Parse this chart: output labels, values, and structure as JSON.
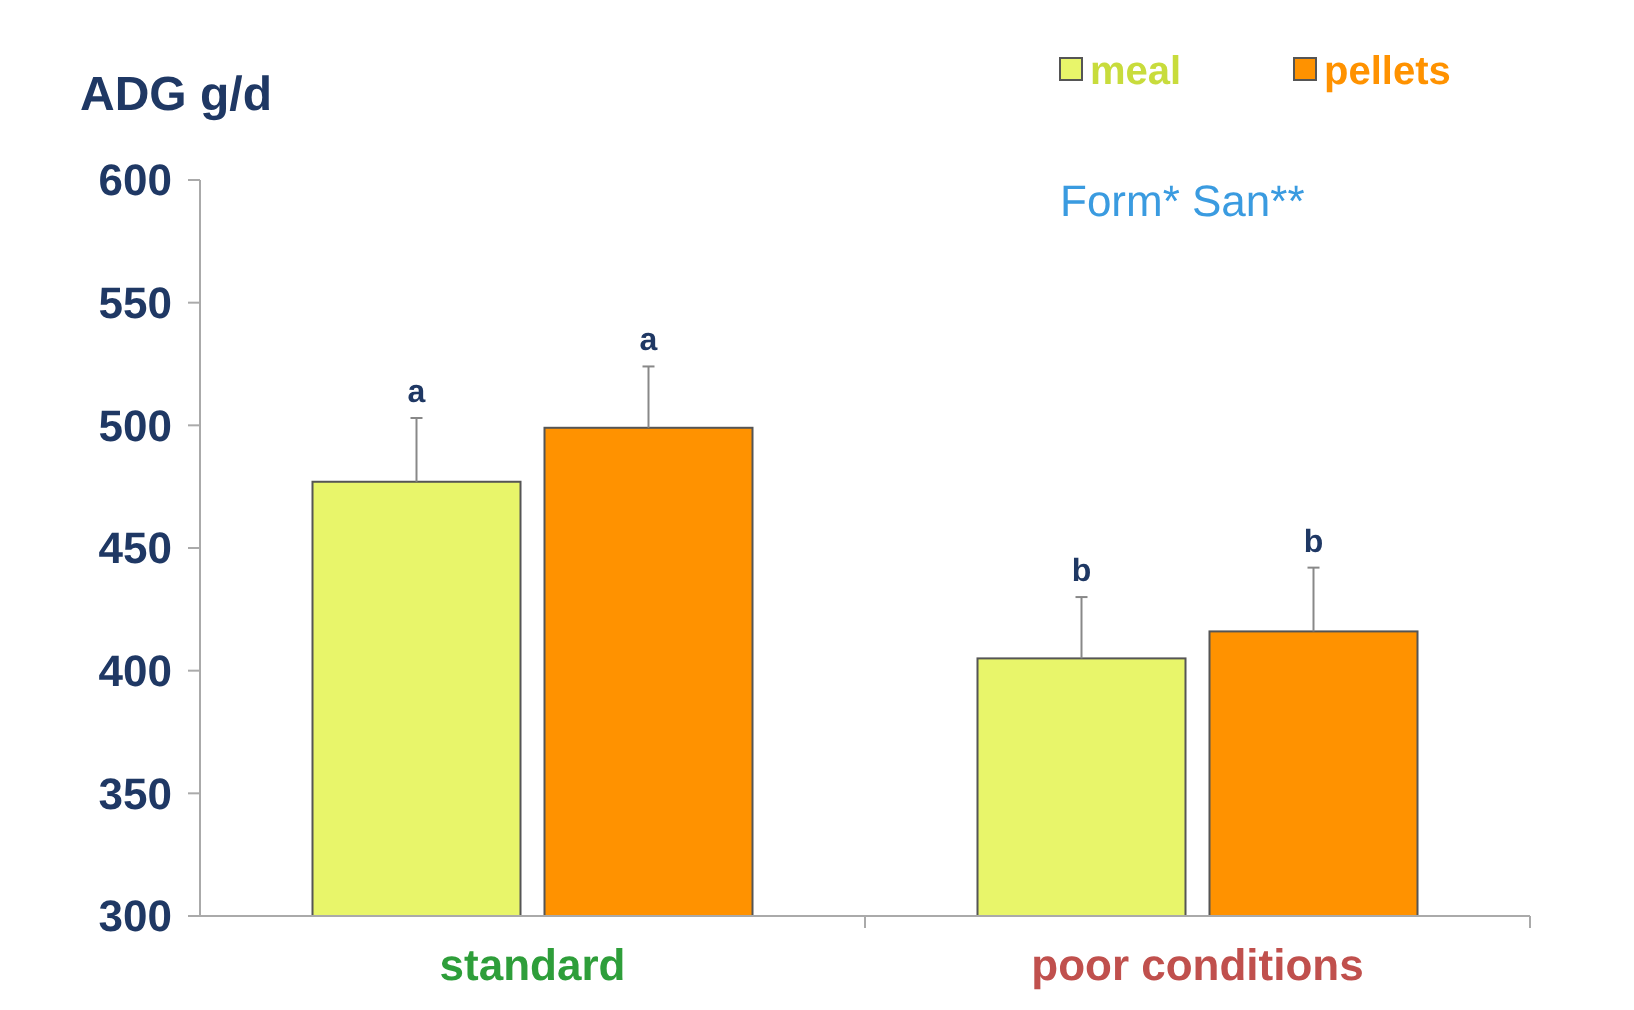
{
  "chart_data": {
    "type": "bar",
    "ylabel": "ADG g/d",
    "categories": [
      "standard",
      "poor conditions"
    ],
    "series": [
      {
        "name": "meal",
        "color": "#e8f56a",
        "values": [
          477,
          405
        ],
        "errors": [
          [
            477,
            503
          ],
          [
            405,
            430
          ]
        ],
        "value_labels": [
          "a",
          "b"
        ]
      },
      {
        "name": "pellets",
        "color": "#ff9200",
        "values": [
          499,
          416
        ],
        "errors": [
          [
            499,
            524
          ],
          [
            416,
            442
          ]
        ],
        "value_labels": [
          "a",
          "b"
        ]
      }
    ],
    "ylim": [
      300,
      600
    ],
    "yticks": [
      300,
      350,
      400,
      450,
      500,
      550,
      600
    ],
    "grid": false,
    "legend": "top right",
    "annotations": [
      "Form* San**"
    ]
  }
}
